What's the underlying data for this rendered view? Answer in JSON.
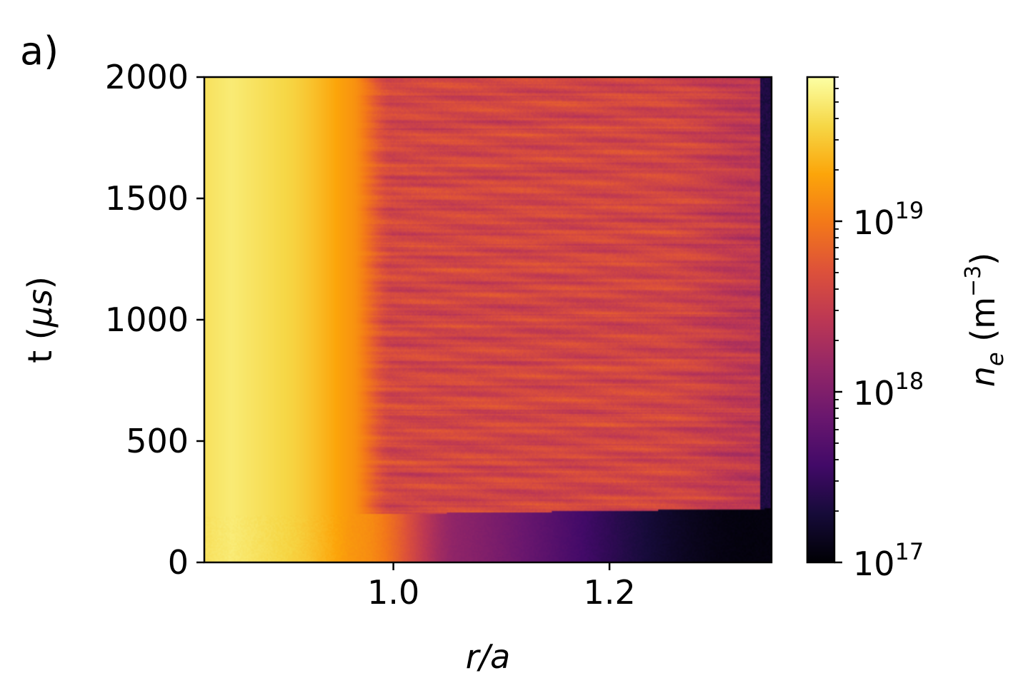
{
  "panel_label": "a)",
  "chart_data": {
    "type": "heatmap",
    "title": "",
    "xlabel": {
      "main": "r/a"
    },
    "ylabel": {
      "main": "t (",
      "symbol": "μs",
      "close": ")"
    },
    "colorbar_label": {
      "main": "n",
      "sub": "e",
      "unit": " (m",
      "exp": "−3",
      "close": ")"
    },
    "xlim": [
      0.825,
      1.35
    ],
    "ylim": [
      0,
      2000
    ],
    "x_ticks": [
      {
        "value": 1.0,
        "label": "1.0"
      },
      {
        "value": 1.2,
        "label": "1.2"
      }
    ],
    "y_ticks": [
      {
        "value": 0,
        "label": "0"
      },
      {
        "value": 500,
        "label": "500"
      },
      {
        "value": 1000,
        "label": "1000"
      },
      {
        "value": 1500,
        "label": "1500"
      },
      {
        "value": 2000,
        "label": "2000"
      }
    ],
    "colorbar": {
      "scale": "log",
      "colormap": "inferno",
      "min": 1e+17,
      "max": 7e+19,
      "ticks": [
        {
          "value": 1e+17,
          "base": "10",
          "exp": "17"
        },
        {
          "value": 1e+18,
          "base": "10",
          "exp": "18"
        },
        {
          "value": 1e+19,
          "base": "10",
          "exp": "19"
        }
      ]
    },
    "features": {
      "bright_core_r": 0.85,
      "separatrix_r": 1.0,
      "turbulence_onset_t": 200,
      "wall_edge_r": 1.34
    },
    "grid": false
  }
}
